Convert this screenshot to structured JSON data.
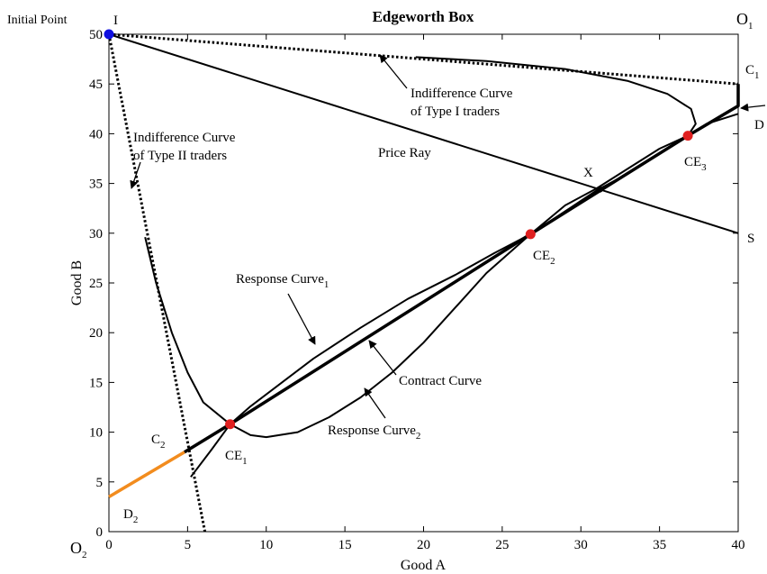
{
  "chart_data": {
    "type": "line",
    "title": "Edgeworth Box",
    "xlabel": "Good A",
    "ylabel": "Good B",
    "xlim": [
      0,
      40
    ],
    "ylim": [
      0,
      50
    ],
    "xticks": [
      0,
      5,
      10,
      15,
      20,
      25,
      30,
      35,
      40
    ],
    "yticks": [
      0,
      5,
      10,
      15,
      20,
      25,
      30,
      35,
      40,
      45,
      50
    ],
    "series": [
      {
        "color": "#000000",
        "dash": "dotted",
        "width": 3,
        "x": [
          0,
          40
        ],
        "values": [
          50,
          45
        ]
      },
      {
        "color": "#000000",
        "dash": "dotted",
        "width": 3,
        "x": [
          0,
          6.1
        ],
        "values": [
          50,
          0
        ]
      },
      {
        "color": "#000000",
        "dash": "solid",
        "width": 2,
        "x": [
          0,
          40
        ],
        "values": [
          50,
          30
        ]
      },
      {
        "color": "#000000",
        "dash": "solid",
        "width": 3.5,
        "x": [
          4.8,
          7.7,
          26.8,
          36.8,
          40,
          40
        ],
        "values": [
          8,
          10.8,
          29.9,
          39.8,
          42.8,
          45
        ]
      },
      {
        "color": "#f28c1e",
        "dash": "solid",
        "width": 3.5,
        "x": [
          0,
          4.8
        ],
        "values": [
          3.5,
          8
        ]
      },
      {
        "color": "#000000",
        "dash": "solid",
        "width": 2,
        "x": [
          2.3,
          3,
          4,
          5,
          6,
          7.7,
          9,
          10,
          12,
          14,
          16,
          18,
          20,
          22,
          24,
          26.8,
          29,
          31,
          33,
          35,
          36.8,
          37.3,
          37,
          35.5,
          33,
          29,
          24,
          19.5
        ],
        "values": [
          29.6,
          25,
          20,
          16,
          13,
          10.8,
          9.7,
          9.5,
          10,
          11.5,
          13.5,
          16,
          19,
          22.5,
          26,
          29.9,
          32.8,
          34.5,
          36.5,
          38.5,
          39.8,
          41,
          42.5,
          44,
          45.3,
          46.5,
          47.3,
          47.7
        ]
      },
      {
        "color": "#000000",
        "dash": "solid",
        "width": 2,
        "x": [
          5.2,
          6.5,
          7.7,
          9,
          11,
          13,
          16,
          19,
          22,
          24.5,
          26.8,
          29,
          31,
          33,
          35,
          36.8,
          38,
          40
        ],
        "values": [
          5.5,
          8.2,
          10.8,
          12.6,
          15,
          17.4,
          20.5,
          23.4,
          25.8,
          28,
          29.9,
          32.2,
          34.3,
          36,
          38,
          39.8,
          41,
          42
        ]
      }
    ],
    "points": [
      {
        "x": 0,
        "y": 50,
        "color": "#1010e0"
      },
      {
        "x": 7.7,
        "y": 10.8,
        "color": "#e02020"
      },
      {
        "x": 26.8,
        "y": 29.9,
        "color": "#e02020"
      },
      {
        "x": 36.8,
        "y": 39.8,
        "color": "#e02020"
      },
      {
        "x": 31.2,
        "y": 34.4,
        "color": "#000000"
      }
    ],
    "annotations": [
      {
        "text": "Initial Point"
      },
      {
        "text": "I"
      },
      {
        "text": "O",
        "sub": "1"
      },
      {
        "text": "C",
        "sub": "1"
      },
      {
        "text": "D"
      },
      {
        "text": "S"
      },
      {
        "text": "X"
      },
      {
        "text": "CE",
        "sub": "1"
      },
      {
        "text": "CE",
        "sub": "2"
      },
      {
        "text": "CE",
        "sub": "3"
      },
      {
        "text": "C",
        "sub": "2"
      },
      {
        "text": "D",
        "sub": "2"
      },
      {
        "text": "O",
        "sub": "2"
      },
      {
        "text": "Price Ray"
      },
      {
        "lines": [
          "Indifference Curve",
          "of Type I traders"
        ]
      },
      {
        "lines": [
          "Indifference Curve",
          "of Type II traders"
        ]
      },
      {
        "text": "Response Curve",
        "sub": "1"
      },
      {
        "text": "Contract Curve"
      },
      {
        "text": "Response Curve",
        "sub": "2"
      }
    ]
  }
}
